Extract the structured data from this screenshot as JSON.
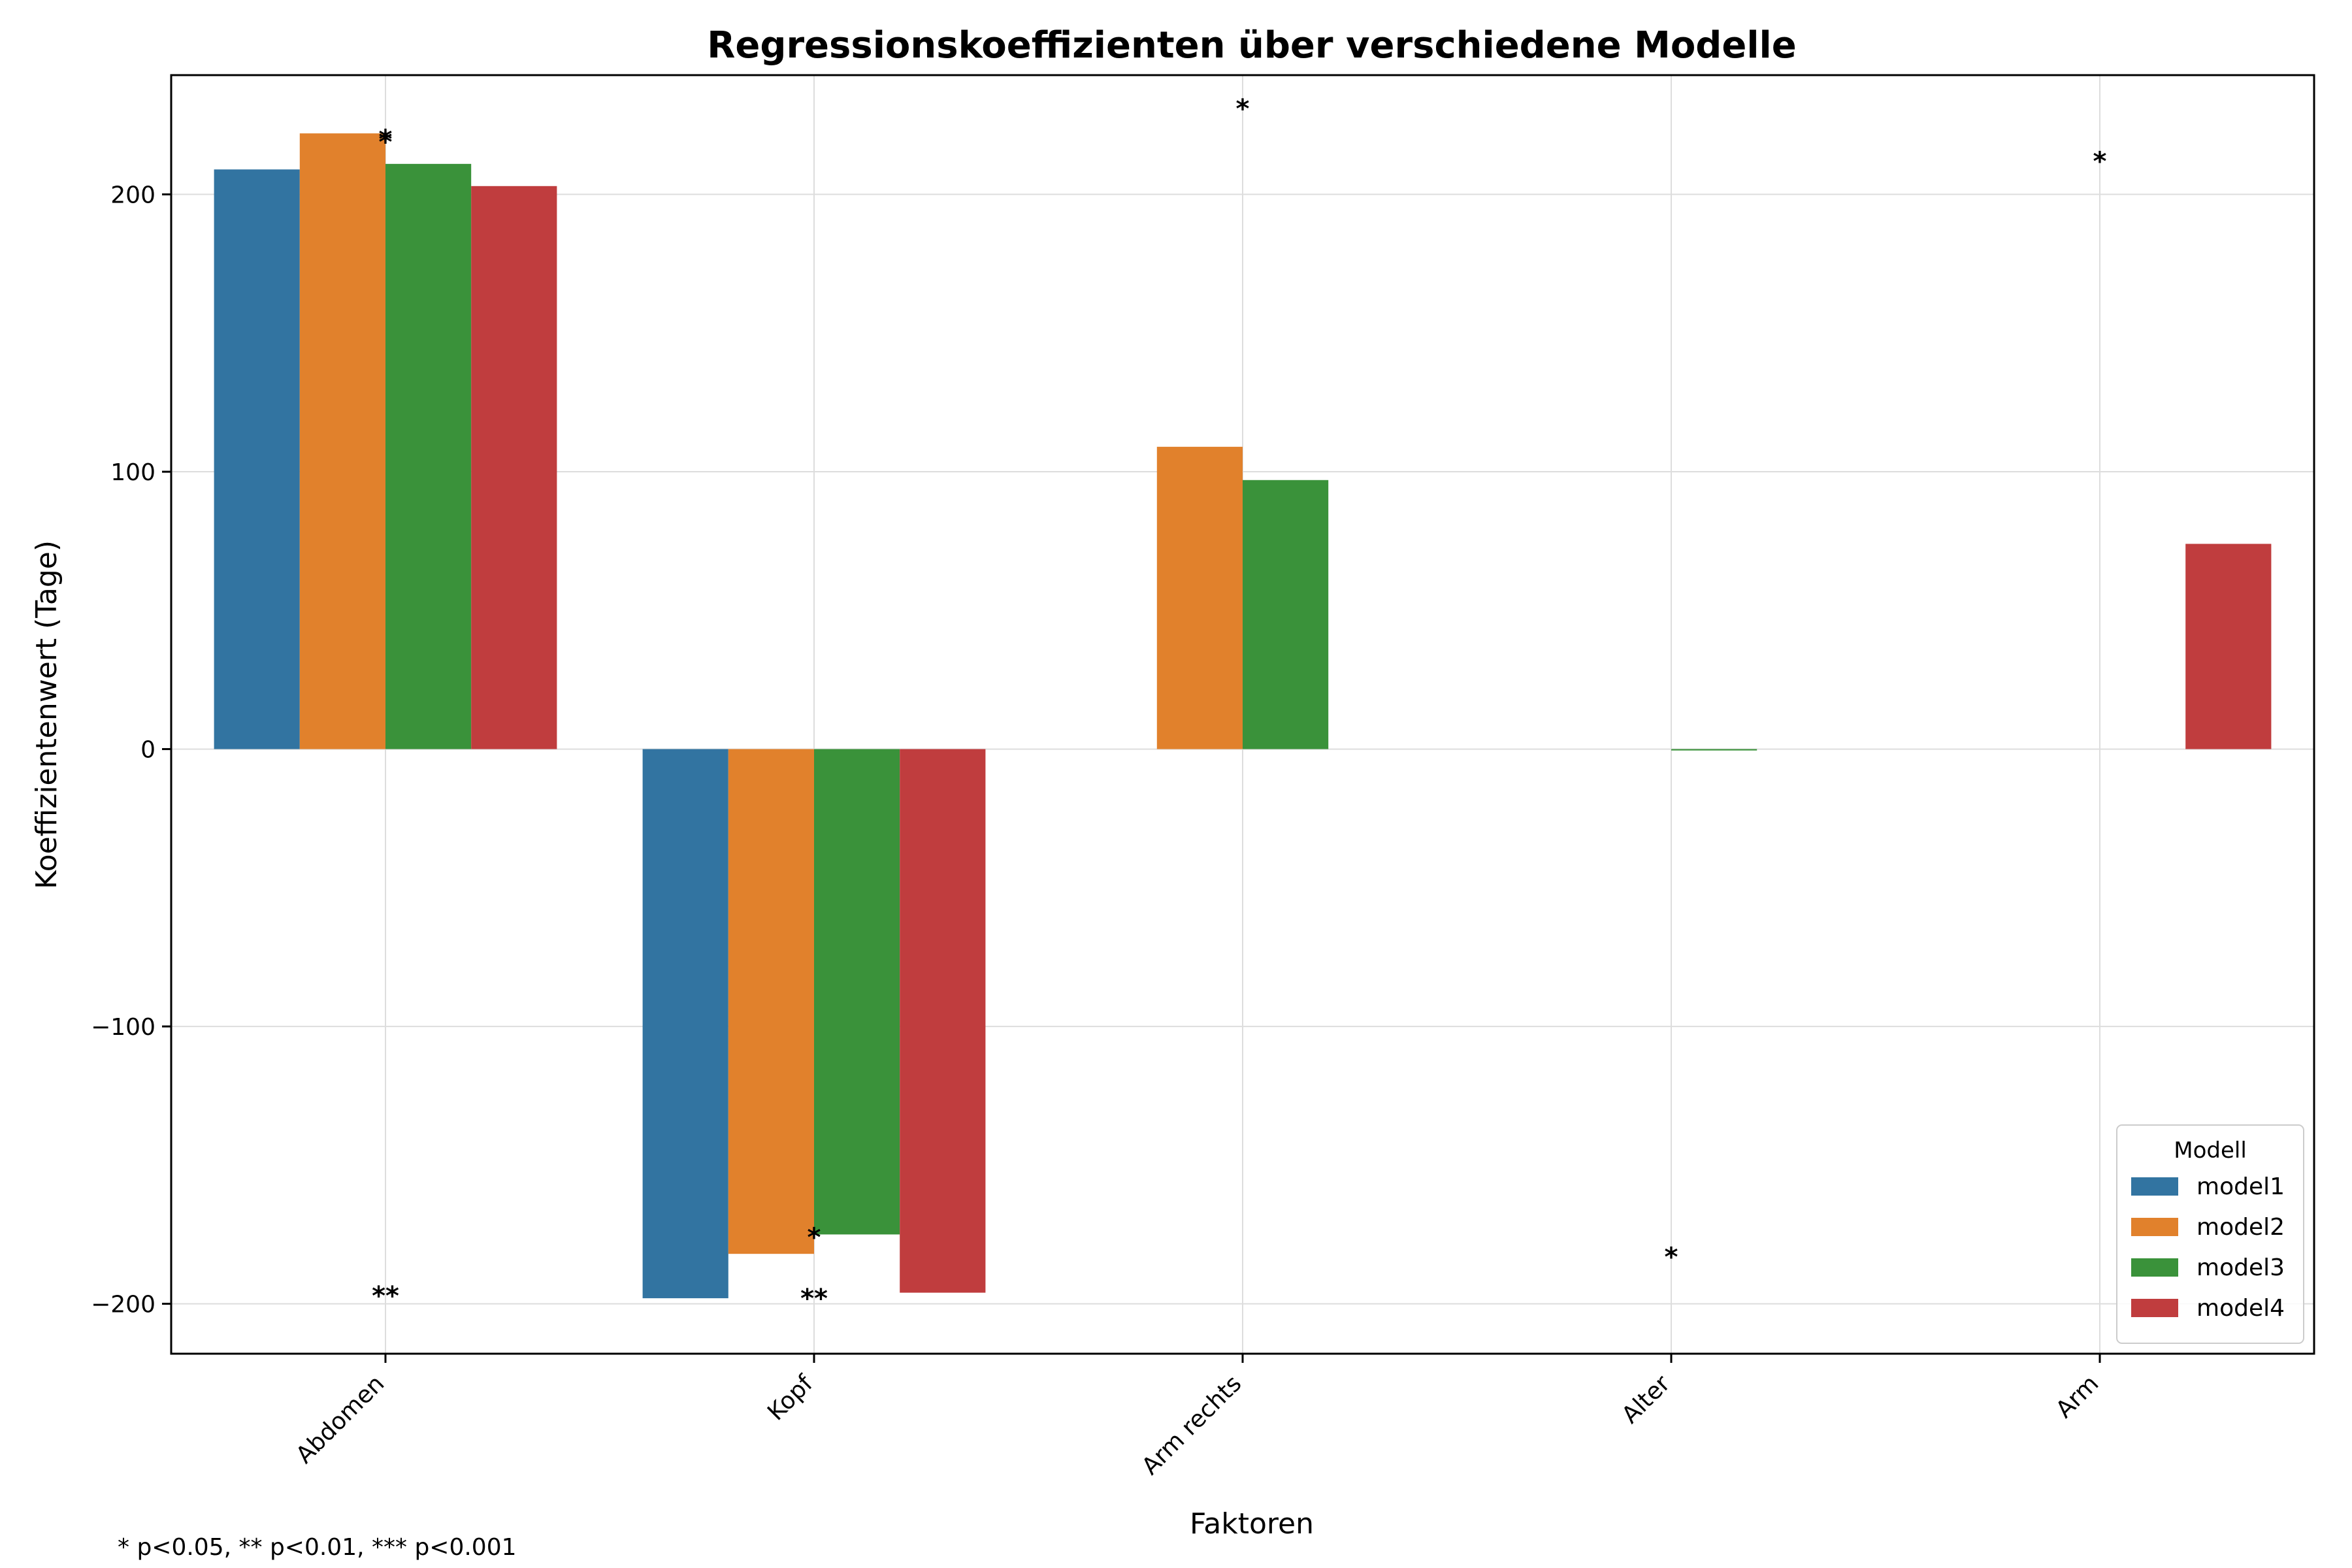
{
  "chart_data": {
    "type": "bar",
    "title": "Regressionskoeffizienten über verschiedene Modelle",
    "xlabel": "Faktoren",
    "ylabel": "Koeffizientenwert (Tage)",
    "categories": [
      "Abdomen",
      "Kopf",
      "Arm rechts",
      "Alter",
      "Arm"
    ],
    "ylim": [
      -218,
      243
    ],
    "yticks": [
      -200,
      -100,
      0,
      100,
      200
    ],
    "ytick_labels": [
      "−200",
      "−100",
      "0",
      "100",
      "200"
    ],
    "grid": true,
    "legend": {
      "title": "Modell",
      "placement": "lower-right"
    },
    "series": [
      {
        "name": "model1",
        "color": "#3274a1",
        "values": [
          209,
          -198,
          null,
          null,
          null
        ]
      },
      {
        "name": "model2",
        "color": "#e1812c",
        "values": [
          222,
          -182,
          109,
          null,
          null
        ]
      },
      {
        "name": "model3",
        "color": "#3a923a",
        "values": [
          211,
          -175,
          97,
          -0.5,
          null
        ]
      },
      {
        "name": "model4",
        "color": "#c03d3e",
        "values": [
          203,
          -196,
          null,
          null,
          74
        ]
      }
    ],
    "annotations": [
      {
        "category": "Abdomen",
        "y": 219,
        "text": "*"
      },
      {
        "category": "Abdomen",
        "y": 220,
        "text": "*"
      },
      {
        "category": "Abdomen",
        "y": -197,
        "text": "**"
      },
      {
        "category": "Kopf",
        "y": -176,
        "text": "*"
      },
      {
        "category": "Kopf",
        "y": -198,
        "text": "**"
      },
      {
        "category": "Arm rechts",
        "y": 231,
        "text": "*"
      },
      {
        "category": "Alter",
        "y": -183,
        "text": "*"
      },
      {
        "category": "Arm",
        "y": 212,
        "text": "*"
      }
    ]
  },
  "footnote": "* p<0.05, ** p<0.01, *** p<0.001"
}
